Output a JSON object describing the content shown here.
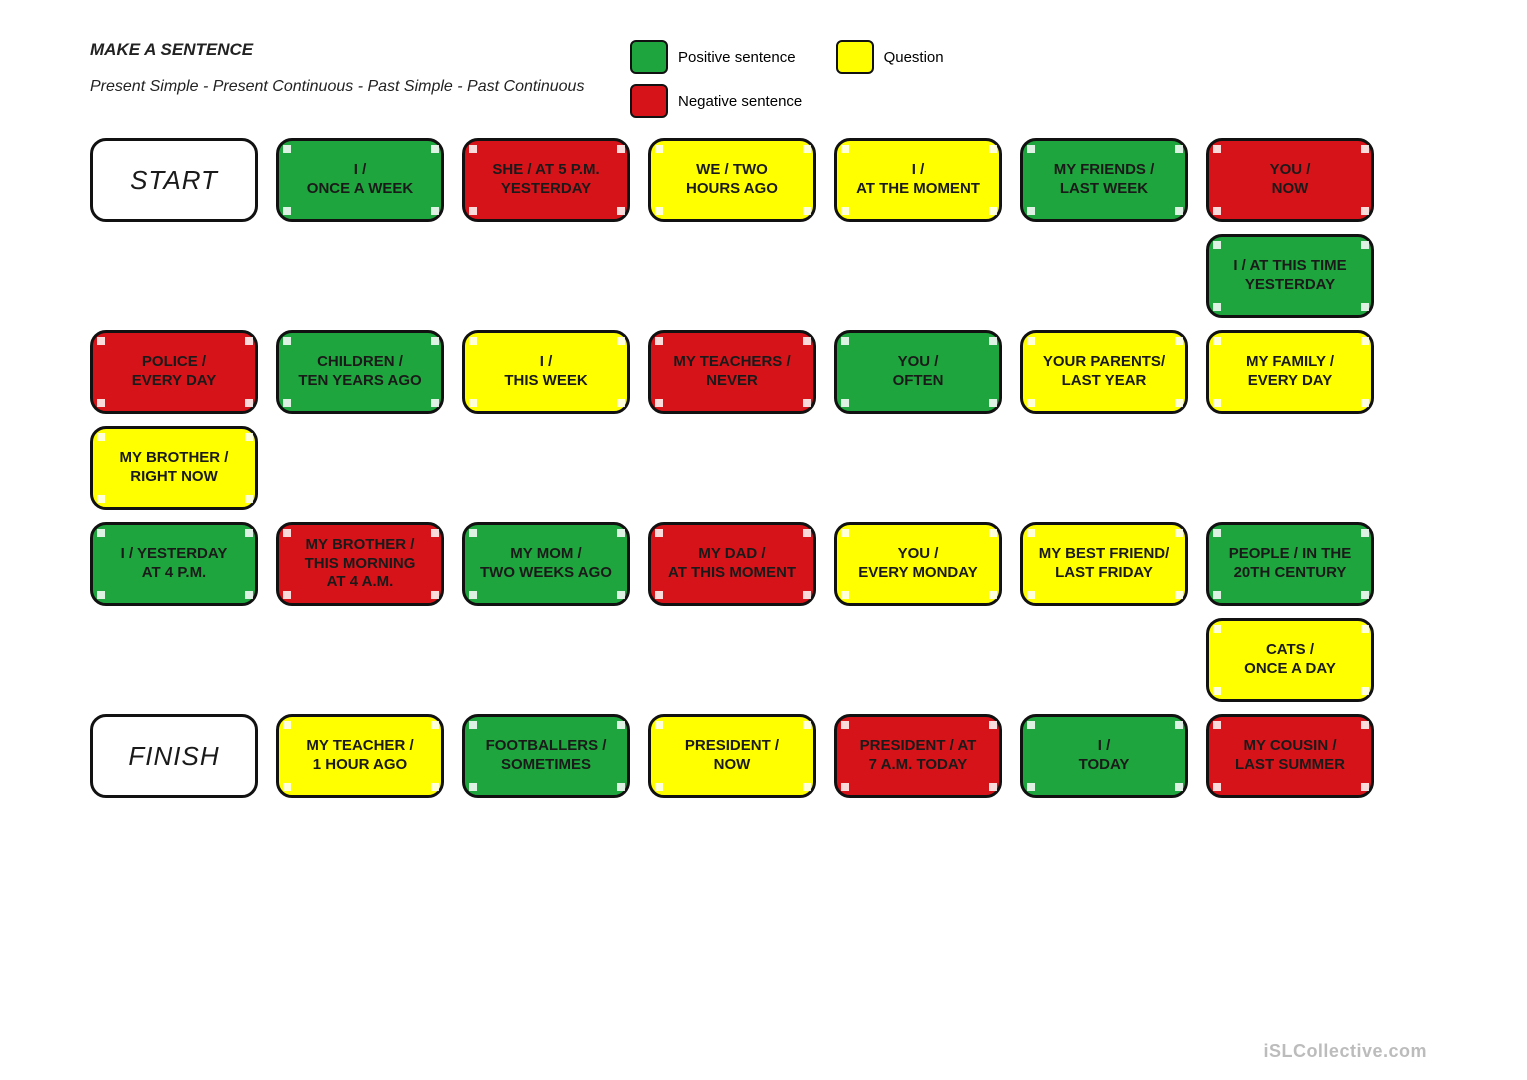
{
  "header": {
    "title": "MAKE A SENTENCE",
    "subtitle": "Present Simple - Present Continuous - Past Simple - Past Continuous"
  },
  "colors": {
    "green": "#1fa53d",
    "red": "#d7131a",
    "yellow": "#ffff00",
    "white": "#ffffff",
    "border": "#111111",
    "text": "#1a1a1a"
  },
  "legend": [
    {
      "swatch": "green",
      "label": "Positive sentence"
    },
    {
      "swatch": "yellow",
      "label": "Question"
    },
    {
      "swatch": "red",
      "label": "Negative sentence"
    }
  ],
  "board": {
    "columns": 7,
    "rows": [
      [
        {
          "type": "white",
          "text": "START"
        },
        {
          "type": "green",
          "text": "I /\nONCE A WEEK"
        },
        {
          "type": "red",
          "text": "SHE / AT 5 P.M.\nYESTERDAY"
        },
        {
          "type": "yellow",
          "text": "WE / TWO\nHOURS AGO"
        },
        {
          "type": "yellow",
          "text": "I /\nAT THE MOMENT"
        },
        {
          "type": "green",
          "text": "MY FRIENDS /\nLAST WEEK"
        },
        {
          "type": "red",
          "text": "YOU /\nNOW"
        }
      ],
      [
        {
          "type": "empty"
        },
        {
          "type": "empty"
        },
        {
          "type": "empty"
        },
        {
          "type": "empty"
        },
        {
          "type": "empty"
        },
        {
          "type": "empty"
        },
        {
          "type": "green",
          "text": "I / AT THIS TIME\nYESTERDAY"
        }
      ],
      [
        {
          "type": "red",
          "text": "POLICE /\nEVERY DAY"
        },
        {
          "type": "green",
          "text": "CHILDREN /\nTEN YEARS AGO"
        },
        {
          "type": "yellow",
          "text": "I /\nTHIS WEEK"
        },
        {
          "type": "red",
          "text": "MY TEACHERS /\nNEVER"
        },
        {
          "type": "green",
          "text": "YOU /\nOFTEN"
        },
        {
          "type": "yellow",
          "text": "YOUR PARENTS/\nLAST YEAR"
        },
        {
          "type": "yellow",
          "text": "MY FAMILY /\nEVERY DAY"
        }
      ],
      [
        {
          "type": "yellow",
          "text": "MY BROTHER /\nRIGHT NOW"
        },
        {
          "type": "empty"
        },
        {
          "type": "empty"
        },
        {
          "type": "empty"
        },
        {
          "type": "empty"
        },
        {
          "type": "empty"
        },
        {
          "type": "empty"
        }
      ],
      [
        {
          "type": "green",
          "text": "I / YESTERDAY\nAT 4 P.M."
        },
        {
          "type": "red",
          "text": "MY BROTHER /\nTHIS MORNING\nAT 4 A.M."
        },
        {
          "type": "green",
          "text": "MY MOM /\nTWO WEEKS AGO"
        },
        {
          "type": "red",
          "text": "MY DAD /\nAT THIS MOMENT"
        },
        {
          "type": "yellow",
          "text": "YOU /\nEVERY MONDAY"
        },
        {
          "type": "yellow",
          "text": "MY BEST FRIEND/\nLAST FRIDAY"
        },
        {
          "type": "green",
          "text": "PEOPLE / IN THE\n20TH CENTURY"
        }
      ],
      [
        {
          "type": "empty"
        },
        {
          "type": "empty"
        },
        {
          "type": "empty"
        },
        {
          "type": "empty"
        },
        {
          "type": "empty"
        },
        {
          "type": "empty"
        },
        {
          "type": "yellow",
          "text": "CATS /\nONCE A DAY"
        }
      ],
      [
        {
          "type": "white",
          "text": "FINISH"
        },
        {
          "type": "yellow",
          "text": "MY TEACHER /\n1 HOUR AGO"
        },
        {
          "type": "green",
          "text": "FOOTBALLERS /\nSOMETIMES"
        },
        {
          "type": "yellow",
          "text": "PRESIDENT /\nNOW"
        },
        {
          "type": "red",
          "text": "PRESIDENT / AT\n7 A.M. TODAY"
        },
        {
          "type": "green",
          "text": "I /\nTODAY"
        },
        {
          "type": "red",
          "text": "MY COUSIN /\nLAST SUMMER"
        }
      ]
    ]
  },
  "watermark": "iSLCollective.com"
}
